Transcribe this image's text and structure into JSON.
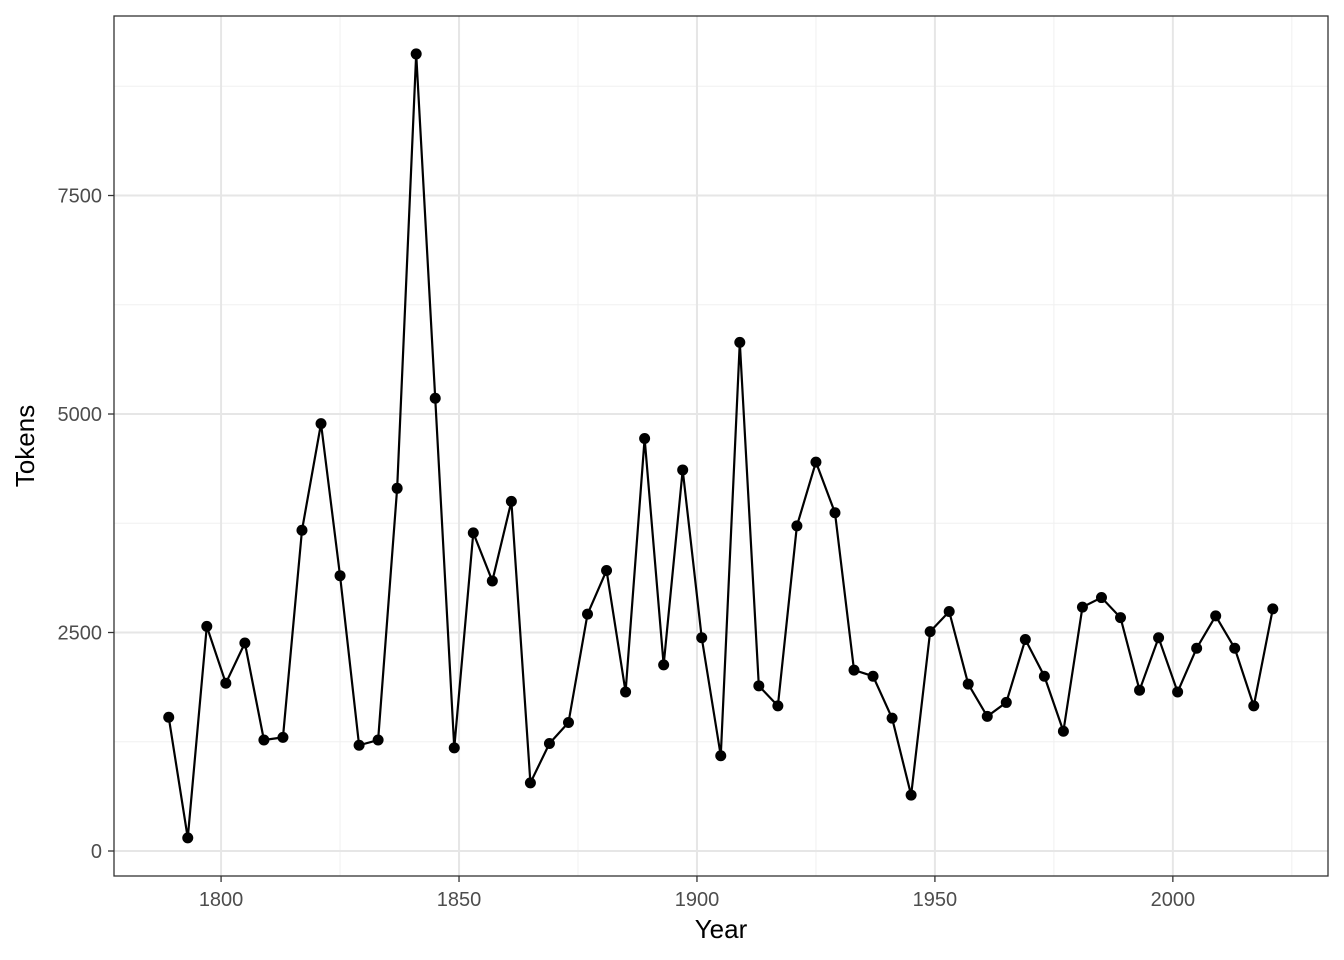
{
  "chart_data": {
    "type": "line",
    "x_label": "Year",
    "y_label": "Tokens",
    "x": [
      1789,
      1793,
      1797,
      1801,
      1805,
      1809,
      1813,
      1817,
      1821,
      1825,
      1829,
      1833,
      1837,
      1841,
      1845,
      1849,
      1853,
      1857,
      1861,
      1865,
      1869,
      1873,
      1877,
      1881,
      1885,
      1889,
      1893,
      1897,
      1901,
      1905,
      1909,
      1913,
      1917,
      1921,
      1925,
      1929,
      1933,
      1937,
      1941,
      1945,
      1949,
      1953,
      1957,
      1961,
      1965,
      1969,
      1973,
      1977,
      1981,
      1985,
      1989,
      1993,
      1997,
      2001,
      2005,
      2009,
      2013,
      2017,
      2021
    ],
    "series": [
      {
        "color": "#000000",
        "values": [
          1530,
          150,
          2570,
          1920,
          2380,
          1270,
          1300,
          3670,
          4890,
          3150,
          1210,
          1270,
          4150,
          9120,
          5180,
          1180,
          3640,
          3090,
          4000,
          780,
          1230,
          1470,
          2710,
          3210,
          1820,
          4720,
          2130,
          4360,
          2440,
          1090,
          5820,
          1890,
          1660,
          3720,
          4450,
          3870,
          2070,
          2000,
          1520,
          640,
          2510,
          2740,
          1910,
          1540,
          1700,
          2420,
          2000,
          1370,
          2790,
          2900,
          2670,
          1840,
          2440,
          1820,
          2320,
          2690,
          2320,
          1660,
          2770
        ]
      }
    ],
    "xlim": [
      1777.5,
      2032.6
    ],
    "ylim": [
      -286,
      9554
    ],
    "xticks": [
      1800,
      1850,
      1900,
      1950,
      2000
    ],
    "yticks": [
      0,
      2500,
      5000,
      7500
    ],
    "grid": true
  }
}
